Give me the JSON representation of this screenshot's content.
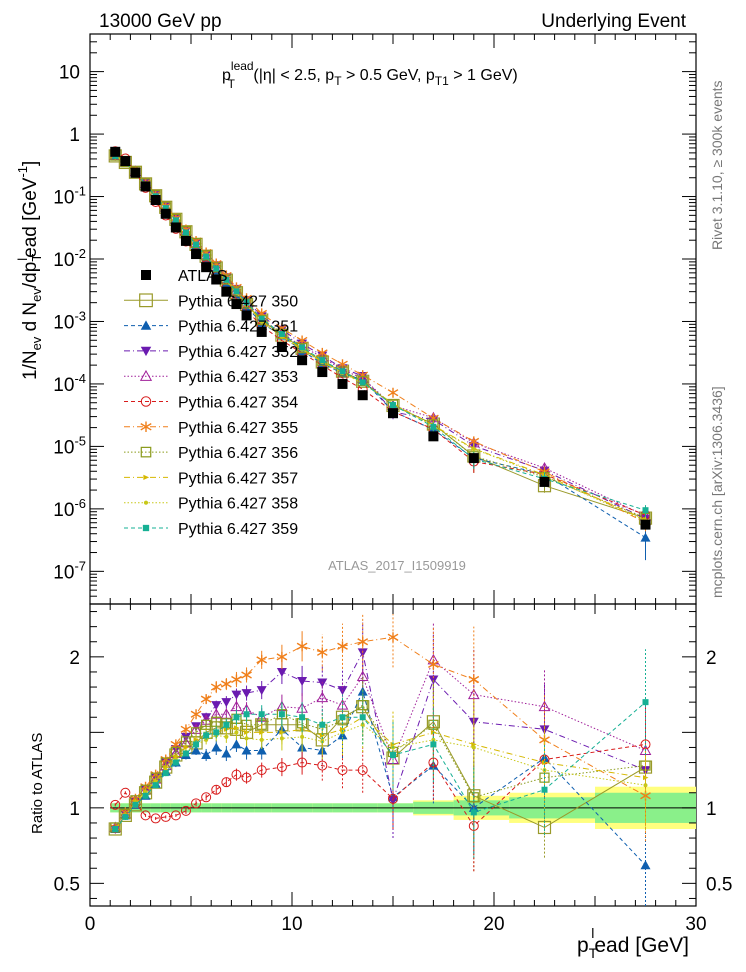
{
  "header": {
    "beam": "13000 GeV pp",
    "process": "Underlying Event"
  },
  "top_title": {
    "p": "p",
    "sup": "lead",
    "sub": "T",
    "rest1": " (|η| < 2.5, p",
    "rest1_sub": "T",
    "rest2": " > 0.5 GeV, p",
    "rest2_sub": "T1",
    "rest3": " > 1 GeV)"
  },
  "ylabel_top": {
    "a": "1/N",
    "a_sub": "ev",
    "b": " d N",
    "b_sub": "ev",
    "c": "/dp",
    "c_sub": "T",
    "c_sup": "l",
    "d": "ead [GeV",
    "d_sup": "-1",
    "e": "]"
  },
  "ylabel_bottom": "Ratio to ATLAS",
  "xlabel": {
    "p": "p",
    "sub": "T",
    "sup": "l",
    "rest": "ead [GeV]"
  },
  "right_labels": {
    "rivet": "Rivet 3.1.10, ≥ 300k events",
    "mcplots": "mcplots.cern.ch [arXiv:1306.3436]"
  },
  "watermark": "ATLAS_2017_I1509919",
  "chart_data": [
    {
      "type": "scatter",
      "title": "p_T^lead (|η| < 2.5, p_T > 0.5 GeV, p_T1 > 1 GeV)",
      "yscale": "log",
      "xlim": [
        0,
        30
      ],
      "ylim": [
        3e-08,
        40
      ],
      "x_ticks": [
        0,
        10,
        20,
        30
      ],
      "y_ticks": [
        1e-07,
        1e-06,
        1e-05,
        0.0001,
        0.001,
        0.01,
        0.1,
        1,
        10
      ],
      "y_tick_labels": [
        [
          "10",
          "-7"
        ],
        [
          "10",
          "-6"
        ],
        [
          "10",
          "-5"
        ],
        [
          "10",
          "-4"
        ],
        [
          "10",
          "-3"
        ],
        [
          "10",
          "-2"
        ],
        [
          "10",
          "-1"
        ],
        [
          "1",
          ""
        ],
        [
          "10",
          ""
        ]
      ],
      "x": [
        1.25,
        1.75,
        2.25,
        2.75,
        3.25,
        3.75,
        4.25,
        4.75,
        5.25,
        5.75,
        6.25,
        6.75,
        7.25,
        7.75,
        8.5,
        9.5,
        10.5,
        11.5,
        12.5,
        13.5,
        15.0,
        17.0,
        19.0,
        22.5,
        27.5
      ],
      "data_values": [
        0.52,
        0.37,
        0.24,
        0.145,
        0.088,
        0.053,
        0.032,
        0.0195,
        0.012,
        0.0074,
        0.0047,
        0.003,
        0.0019,
        0.00125,
        0.00068,
        0.00039,
        0.00024,
        0.000155,
        0.0001,
        6.6e-05,
        3.4e-05,
        1.45e-05,
        6.5e-06,
        2.7e-06,
        5.6e-07
      ],
      "legend": [
        "ATLAS",
        "Pythia 6.427 350",
        "Pythia 6.427 351",
        "Pythia 6.427 352",
        "Pythia 6.427 353",
        "Pythia 6.427 354",
        "Pythia 6.427 355",
        "Pythia 6.427 356",
        "Pythia 6.427 357",
        "Pythia 6.427 358",
        "Pythia 6.427 359"
      ]
    },
    {
      "type": "scatter",
      "ylabel": "Ratio to ATLAS",
      "xlabel": "p_T^lead [GeV]",
      "xlim": [
        0,
        30
      ],
      "ylim": [
        0.35,
        2.35
      ],
      "y_ticks": [
        0.5,
        1,
        1.5,
        2
      ],
      "y_tick_labels": [
        "0.5",
        "1",
        "",
        "2"
      ],
      "x_ticks": [
        0,
        10,
        20,
        30
      ],
      "x": [
        1.25,
        1.75,
        2.25,
        2.75,
        3.25,
        3.75,
        4.25,
        4.75,
        5.25,
        5.75,
        6.25,
        6.75,
        7.25,
        7.75,
        8.5,
        9.5,
        10.5,
        11.5,
        12.5,
        13.5,
        15.0,
        17.0,
        19.0,
        22.5,
        27.5
      ],
      "data_band": {
        "stat": [
          0.03,
          0.03,
          0.03,
          0.03,
          0.03,
          0.03,
          0.03,
          0.03,
          0.03,
          0.03,
          0.03,
          0.03,
          0.03,
          0.03,
          0.03,
          0.03,
          0.03,
          0.03,
          0.03,
          0.03,
          0.03,
          0.04,
          0.05,
          0.07,
          0.1
        ],
        "total": [
          0.03,
          0.03,
          0.03,
          0.03,
          0.03,
          0.03,
          0.03,
          0.03,
          0.03,
          0.03,
          0.03,
          0.03,
          0.03,
          0.03,
          0.03,
          0.03,
          0.03,
          0.03,
          0.03,
          0.03,
          0.03,
          0.05,
          0.08,
          0.1,
          0.14
        ]
      },
      "series": [
        {
          "name": "Pythia 6.427 350",
          "color": "#9a9a2a",
          "marker": "open-square",
          "line": "solid",
          "values": [
            0.86,
            0.95,
            1.02,
            1.1,
            1.17,
            1.27,
            1.35,
            1.4,
            1.43,
            1.5,
            1.53,
            1.53,
            1.52,
            1.5,
            1.55,
            1.55,
            1.55,
            1.45,
            1.6,
            1.67,
            1.33,
            1.57,
            1.08,
            0.87,
            1.27
          ],
          "err": [
            0.02,
            0.02,
            0.02,
            0.02,
            0.02,
            0.02,
            0.02,
            0.02,
            0.02,
            0.03,
            0.03,
            0.03,
            0.04,
            0.05,
            0.06,
            0.08,
            0.1,
            0.12,
            0.15,
            0.2,
            0.25,
            0.3,
            0.5,
            0.2,
            0.3
          ]
        },
        {
          "name": "Pythia 6.427 351",
          "color": "#0f5faf",
          "marker": "filled-triangle-up",
          "line": "dashed",
          "values": [
            0.86,
            0.95,
            1.02,
            1.08,
            1.16,
            1.24,
            1.3,
            1.35,
            1.38,
            1.35,
            1.4,
            1.36,
            1.42,
            1.38,
            1.38,
            1.52,
            1.4,
            1.38,
            1.48,
            1.77,
            1.07,
            1.28,
            1.0,
            1.33,
            0.62
          ],
          "err": [
            0.02,
            0.02,
            0.02,
            0.02,
            0.02,
            0.02,
            0.03,
            0.03,
            0.03,
            0.04,
            0.05,
            0.05,
            0.05,
            0.06,
            0.06,
            0.08,
            0.1,
            0.12,
            0.15,
            0.18,
            0.2,
            0.25,
            0.3,
            0.25,
            0.35
          ]
        },
        {
          "name": "Pythia 6.427 352",
          "color": "#6b1bb0",
          "marker": "filled-triangle-down",
          "line": "dashdot",
          "values": [
            0.86,
            0.96,
            1.04,
            1.12,
            1.2,
            1.3,
            1.39,
            1.47,
            1.54,
            1.6,
            1.68,
            1.7,
            1.75,
            1.76,
            1.78,
            1.9,
            1.84,
            1.83,
            1.78,
            2.03,
            1.05,
            1.85,
            1.57,
            1.52,
            1.25
          ],
          "err": [
            0.02,
            0.02,
            0.02,
            0.02,
            0.02,
            0.02,
            0.02,
            0.02,
            0.02,
            0.03,
            0.03,
            0.04,
            0.04,
            0.05,
            0.06,
            0.08,
            0.1,
            0.12,
            0.15,
            0.2,
            0.25,
            0.3,
            0.3,
            0.3,
            0.3
          ]
        },
        {
          "name": "Pythia 6.427 353",
          "color": "#a0209a",
          "marker": "open-triangle-up",
          "line": "dotted",
          "values": [
            0.87,
            0.96,
            1.05,
            1.12,
            1.19,
            1.28,
            1.36,
            1.43,
            1.52,
            1.58,
            1.62,
            1.62,
            1.67,
            1.65,
            1.6,
            1.67,
            1.66,
            1.73,
            1.68,
            1.87,
            1.32,
            1.98,
            1.75,
            1.67,
            1.38
          ],
          "err": [
            0.02,
            0.02,
            0.02,
            0.02,
            0.02,
            0.02,
            0.02,
            0.02,
            0.03,
            0.03,
            0.04,
            0.04,
            0.05,
            0.05,
            0.06,
            0.08,
            0.1,
            0.12,
            0.15,
            0.18,
            0.22,
            0.25,
            0.3,
            0.25,
            0.3
          ]
        },
        {
          "name": "Pythia 6.427 354",
          "color": "#d81b1b",
          "marker": "open-circle",
          "line": "dashed",
          "values": [
            1.02,
            1.1,
            1.03,
            0.95,
            0.93,
            0.94,
            0.95,
            0.98,
            1.03,
            1.07,
            1.12,
            1.17,
            1.22,
            1.2,
            1.25,
            1.27,
            1.3,
            1.28,
            1.25,
            1.25,
            1.06,
            1.3,
            0.88,
            1.32,
            1.42
          ],
          "err": [
            0.01,
            0.01,
            0.01,
            0.01,
            0.01,
            0.01,
            0.01,
            0.02,
            0.02,
            0.02,
            0.03,
            0.03,
            0.04,
            0.04,
            0.05,
            0.06,
            0.08,
            0.1,
            0.12,
            0.15,
            0.2,
            0.25,
            0.3,
            0.25,
            0.3
          ]
        },
        {
          "name": "Pythia 6.427 355",
          "color": "#f07f1a",
          "marker": "star",
          "line": "dashdot",
          "values": [
            0.87,
            0.97,
            1.06,
            1.14,
            1.22,
            1.32,
            1.42,
            1.52,
            1.62,
            1.72,
            1.8,
            1.82,
            1.85,
            1.88,
            1.98,
            2.0,
            2.07,
            2.03,
            2.07,
            2.1,
            2.13,
            1.95,
            1.85,
            1.45,
            1.08
          ],
          "err": [
            0.02,
            0.02,
            0.02,
            0.02,
            0.02,
            0.02,
            0.02,
            0.03,
            0.03,
            0.03,
            0.04,
            0.04,
            0.05,
            0.05,
            0.06,
            0.08,
            0.1,
            0.12,
            0.15,
            0.18,
            0.2,
            0.25,
            0.35,
            0.3,
            0.3
          ]
        },
        {
          "name": "Pythia 6.427 356",
          "color": "#8a9a1a",
          "marker": "open-square-small",
          "line": "dotted",
          "values": [
            0.87,
            0.96,
            1.05,
            1.12,
            1.2,
            1.3,
            1.37,
            1.44,
            1.5,
            1.55,
            1.57,
            1.56,
            1.59,
            1.55,
            1.55,
            1.62,
            1.56,
            1.52,
            1.58,
            1.68,
            1.37,
            1.55,
            1.07,
            1.2,
            1.28
          ],
          "err": [
            0.02,
            0.02,
            0.02,
            0.02,
            0.02,
            0.02,
            0.02,
            0.02,
            0.03,
            0.03,
            0.04,
            0.04,
            0.05,
            0.05,
            0.06,
            0.08,
            0.1,
            0.12,
            0.15,
            0.2,
            0.25,
            0.3,
            0.3,
            0.25,
            0.3
          ]
        },
        {
          "name": "Pythia 6.427 357",
          "color": "#d6b800",
          "marker": "small-tri",
          "line": "dashdot",
          "values": [
            0.86,
            0.95,
            1.04,
            1.11,
            1.18,
            1.27,
            1.34,
            1.4,
            1.45,
            1.49,
            1.5,
            1.52,
            1.53,
            1.5,
            1.5,
            1.5,
            1.52,
            1.48,
            1.52,
            1.6,
            1.42,
            1.5,
            1.42,
            1.3,
            1.2
          ],
          "err": [
            0.02,
            0.02,
            0.02,
            0.02,
            0.02,
            0.02,
            0.02,
            0.02,
            0.03,
            0.03,
            0.04,
            0.04,
            0.05,
            0.05,
            0.06,
            0.08,
            0.1,
            0.12,
            0.15,
            0.18,
            0.22,
            0.25,
            0.3,
            0.25,
            0.3
          ]
        },
        {
          "name": "Pythia 6.427 358",
          "color": "#c8c818",
          "marker": "small-dot",
          "line": "dotted",
          "values": [
            0.86,
            0.95,
            1.03,
            1.1,
            1.17,
            1.25,
            1.32,
            1.37,
            1.42,
            1.45,
            1.48,
            1.47,
            1.5,
            1.46,
            1.45,
            1.46,
            1.47,
            1.44,
            1.5,
            1.55,
            1.4,
            1.45,
            1.4,
            1.25,
            1.15
          ],
          "err": [
            0.02,
            0.02,
            0.02,
            0.02,
            0.02,
            0.02,
            0.02,
            0.02,
            0.03,
            0.03,
            0.04,
            0.04,
            0.05,
            0.05,
            0.06,
            0.08,
            0.1,
            0.12,
            0.15,
            0.18,
            0.2,
            0.25,
            0.3,
            0.25,
            0.3
          ]
        },
        {
          "name": "Pythia 6.427 359",
          "color": "#16b094",
          "marker": "filled-square-small",
          "line": "dashed",
          "values": [
            0.86,
            0.94,
            1.02,
            1.08,
            1.15,
            1.23,
            1.3,
            1.36,
            1.42,
            1.48,
            1.5,
            1.55,
            1.6,
            1.62,
            1.62,
            1.62,
            1.6,
            1.55,
            1.6,
            1.6,
            1.35,
            1.42,
            0.97,
            1.12,
            1.7
          ],
          "err": [
            0.02,
            0.02,
            0.02,
            0.02,
            0.02,
            0.02,
            0.02,
            0.02,
            0.03,
            0.03,
            0.04,
            0.04,
            0.05,
            0.05,
            0.06,
            0.08,
            0.1,
            0.12,
            0.15,
            0.18,
            0.22,
            0.25,
            0.3,
            0.3,
            0.35
          ]
        }
      ]
    }
  ]
}
